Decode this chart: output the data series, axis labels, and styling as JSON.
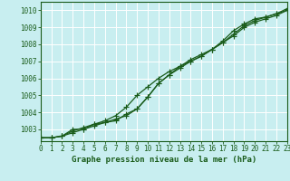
{
  "title": "Graphe pression niveau de la mer (hPa)",
  "bg_color": "#c8eef0",
  "grid_color": "#a8d8da",
  "line_color": "#1a5c1a",
  "xlim": [
    0,
    23
  ],
  "ylim": [
    1002.3,
    1010.5
  ],
  "yticks": [
    1003,
    1004,
    1005,
    1006,
    1007,
    1008,
    1009,
    1010
  ],
  "xticks": [
    0,
    1,
    2,
    3,
    4,
    5,
    6,
    7,
    8,
    9,
    10,
    11,
    12,
    13,
    14,
    15,
    16,
    17,
    18,
    19,
    20,
    21,
    22,
    23
  ],
  "series1": [
    1002.5,
    1002.5,
    1002.6,
    1002.8,
    1003.0,
    1003.2,
    1003.4,
    1003.6,
    1003.8,
    1004.2,
    1004.9,
    1005.7,
    1006.2,
    1006.6,
    1007.0,
    1007.3,
    1007.7,
    1008.1,
    1008.5,
    1009.0,
    1009.3,
    1009.5,
    1009.7,
    1010.0
  ],
  "series2": [
    1002.5,
    1002.5,
    1002.6,
    1002.9,
    1003.1,
    1003.3,
    1003.5,
    1003.8,
    1004.3,
    1005.0,
    1005.5,
    1006.0,
    1006.4,
    1006.7,
    1007.1,
    1007.4,
    1007.7,
    1008.1,
    1008.6,
    1009.1,
    1009.4,
    1009.6,
    1009.8,
    1010.0
  ],
  "series3": [
    1002.5,
    1002.5,
    1002.6,
    1003.0,
    1003.0,
    1003.3,
    1003.4,
    1003.5,
    1003.9,
    1004.2,
    1004.9,
    1005.7,
    1006.2,
    1006.7,
    1007.0,
    1007.3,
    1007.7,
    1008.2,
    1008.8,
    1009.2,
    1009.5,
    1009.6,
    1009.8,
    1010.1
  ],
  "marker": "+",
  "marker_size": 4,
  "line_width": 0.9,
  "title_fontsize": 6.5,
  "tick_fontsize": 5.5
}
